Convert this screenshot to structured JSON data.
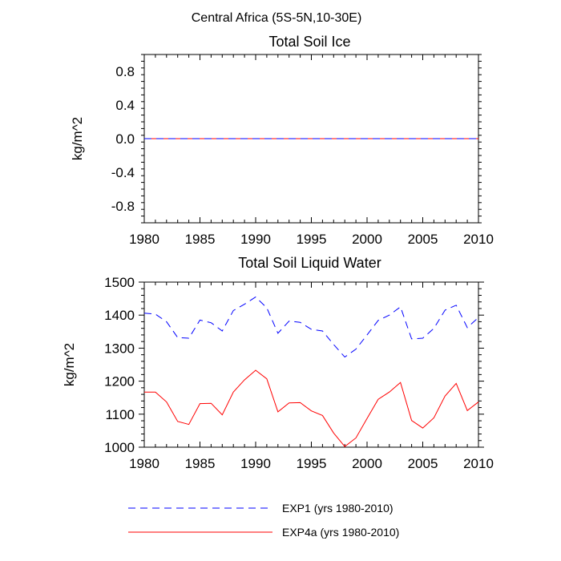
{
  "figure": {
    "suptitle": "Central Africa (5S-5N,10-30E)"
  },
  "colors": {
    "exp1": "#0000ff",
    "exp4a": "#ff0000",
    "axis": "#000000"
  },
  "legend": {
    "placement": "bottom",
    "items": [
      {
        "label": "EXP1 (yrs 1980-2010)",
        "color": "#0000ff",
        "dash": "dashed"
      },
      {
        "label": "EXP4a (yrs 1980-2010)",
        "color": "#ff0000",
        "dash": "solid"
      }
    ]
  },
  "chart_data": [
    {
      "type": "line",
      "title": "Total Soil Ice",
      "xlabel": "",
      "ylabel": "kg/m^2",
      "xlim": [
        1980,
        2010
      ],
      "ylim": [
        -1.0,
        1.0
      ],
      "xticks": [
        1980,
        1985,
        1990,
        1995,
        2000,
        2005,
        2010
      ],
      "xtick_labels": [
        "1980",
        "1985",
        "1990",
        "1995",
        "2000",
        "2005",
        "2010"
      ],
      "yticks": [
        -0.8,
        -0.4,
        0.0,
        0.4,
        0.8
      ],
      "ytick_labels": [
        "-0.8",
        "-0.4",
        "0.0",
        "0.4",
        "0.8"
      ],
      "x": [
        1980,
        1981,
        1982,
        1983,
        1984,
        1985,
        1986,
        1987,
        1988,
        1989,
        1990,
        1991,
        1992,
        1993,
        1994,
        1995,
        1996,
        1997,
        1998,
        1999,
        2000,
        2001,
        2002,
        2003,
        2004,
        2005,
        2006,
        2007,
        2008,
        2009,
        2010
      ],
      "series": [
        {
          "name": "EXP1 (yrs 1980-2010)",
          "color": "#0000ff",
          "dash": "dashed",
          "values": [
            0,
            0,
            0,
            0,
            0,
            0,
            0,
            0,
            0,
            0,
            0,
            0,
            0,
            0,
            0,
            0,
            0,
            0,
            0,
            0,
            0,
            0,
            0,
            0,
            0,
            0,
            0,
            0,
            0,
            0,
            0
          ]
        },
        {
          "name": "EXP4a (yrs 1980-2010)",
          "color": "#ff0000",
          "dash": "solid",
          "values": [
            0,
            0,
            0,
            0,
            0,
            0,
            0,
            0,
            0,
            0,
            0,
            0,
            0,
            0,
            0,
            0,
            0,
            0,
            0,
            0,
            0,
            0,
            0,
            0,
            0,
            0,
            0,
            0,
            0,
            0,
            0
          ]
        }
      ]
    },
    {
      "type": "line",
      "title": "Total Soil Liquid Water",
      "xlabel": "",
      "ylabel": "kg/m^2",
      "xlim": [
        1980,
        2010
      ],
      "ylim": [
        1000,
        1500
      ],
      "xticks": [
        1980,
        1985,
        1990,
        1995,
        2000,
        2005,
        2010
      ],
      "xtick_labels": [
        "1980",
        "1985",
        "1990",
        "1995",
        "2000",
        "2005",
        "2010"
      ],
      "yticks": [
        1000,
        1100,
        1200,
        1300,
        1400,
        1500
      ],
      "ytick_labels": [
        "1000",
        "1100",
        "1200",
        "1300",
        "1400",
        "1500"
      ],
      "x": [
        1980,
        1981,
        1982,
        1983,
        1984,
        1985,
        1986,
        1987,
        1988,
        1989,
        1990,
        1991,
        1992,
        1993,
        1994,
        1995,
        1996,
        1997,
        1998,
        1999,
        2000,
        2001,
        2002,
        2003,
        2004,
        2005,
        2006,
        2007,
        2008,
        2009,
        2010
      ],
      "series": [
        {
          "name": "EXP1 (yrs 1980-2010)",
          "color": "#0000ff",
          "dash": "dashed",
          "values": [
            1406,
            1403,
            1380,
            1332,
            1330,
            1385,
            1377,
            1352,
            1414,
            1433,
            1455,
            1422,
            1345,
            1382,
            1378,
            1357,
            1352,
            1311,
            1273,
            1297,
            1340,
            1384,
            1400,
            1425,
            1328,
            1330,
            1360,
            1415,
            1430,
            1362,
            1393
          ]
        },
        {
          "name": "EXP4a (yrs 1980-2010)",
          "color": "#ff0000",
          "dash": "solid",
          "values": [
            1167,
            1167,
            1137,
            1078,
            1069,
            1132,
            1133,
            1098,
            1167,
            1204,
            1233,
            1207,
            1107,
            1134,
            1135,
            1110,
            1096,
            1043,
            1002,
            1028,
            1087,
            1145,
            1167,
            1196,
            1081,
            1058,
            1089,
            1155,
            1193,
            1111,
            1137
          ]
        }
      ]
    }
  ]
}
